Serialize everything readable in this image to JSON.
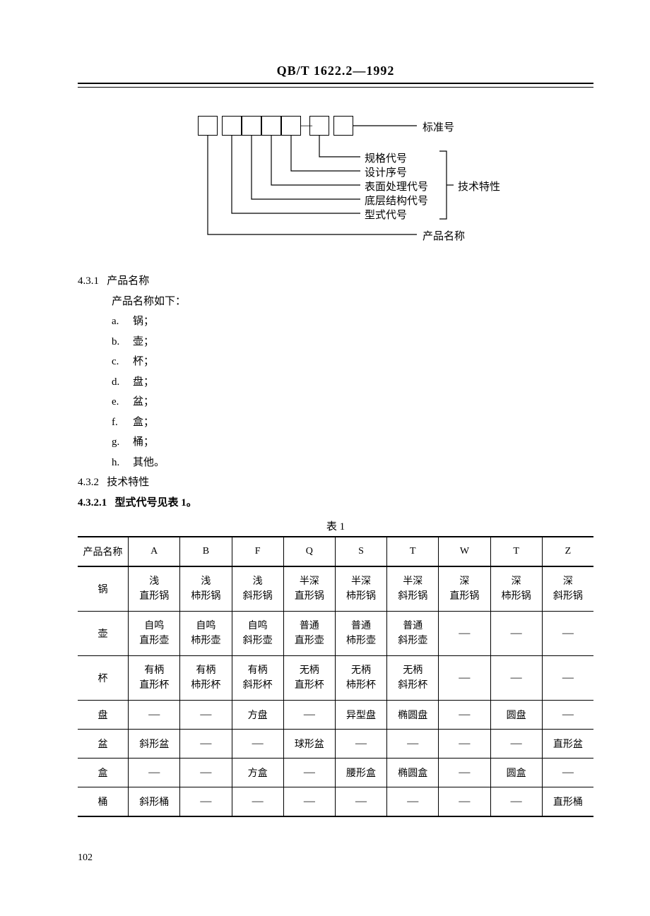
{
  "header": {
    "standard_code": "QB/T 1622.2—1992"
  },
  "diagram": {
    "labels": {
      "l1": "标准号",
      "l2": "规格代号",
      "l3": "设计序号",
      "l4": "表面处理代号",
      "l5": "底层结构代号",
      "l6": "型式代号",
      "l7": "产品名称",
      "group": "技术特性"
    }
  },
  "section_431": {
    "num": "4.3.1",
    "title": "产品名称",
    "intro": "产品名称如下：",
    "items": [
      {
        "letter": "a.",
        "text": "锅；"
      },
      {
        "letter": "b.",
        "text": "壶；"
      },
      {
        "letter": "c.",
        "text": "杯；"
      },
      {
        "letter": "d.",
        "text": "盘；"
      },
      {
        "letter": "e.",
        "text": "盆；"
      },
      {
        "letter": "f.",
        "text": "盒；"
      },
      {
        "letter": "g.",
        "text": "桶；"
      },
      {
        "letter": "h.",
        "text": "其他。"
      }
    ]
  },
  "section_432": {
    "num": "4.3.2",
    "title": "技术特性"
  },
  "section_4321": {
    "num": "4.3.2.1",
    "title": "型式代号见表 1。"
  },
  "table1": {
    "caption": "表 1",
    "columns": [
      "产品名称",
      "A",
      "B",
      "F",
      "Q",
      "S",
      "T",
      "W",
      "T",
      "Z"
    ],
    "rows": [
      {
        "name": "锅",
        "cells": [
          "浅\n直形锅",
          "浅\n柿形锅",
          "浅\n斜形锅",
          "半深\n直形锅",
          "半深\n柿形锅",
          "半深\n斜形锅",
          "深\n直形锅",
          "深\n柿形锅",
          "深\n斜形锅"
        ]
      },
      {
        "name": "壶",
        "cells": [
          "自鸣\n直形壶",
          "自鸣\n柿形壶",
          "自鸣\n斜形壶",
          "普通\n直形壶",
          "普通\n柿形壶",
          "普通\n斜形壶",
          "—",
          "—",
          "—"
        ]
      },
      {
        "name": "杯",
        "cells": [
          "有柄\n直形杯",
          "有柄\n柿形杯",
          "有柄\n斜形杯",
          "无柄\n直形杯",
          "无柄\n柿形杯",
          "无柄\n斜形杯",
          "—",
          "—",
          "—"
        ]
      },
      {
        "name": "盘",
        "cells": [
          "—",
          "—",
          "方盘",
          "—",
          "异型盘",
          "椭圆盘",
          "—",
          "圆盘",
          "—"
        ]
      },
      {
        "name": "盆",
        "cells": [
          "斜形盆",
          "—",
          "—",
          "球形盆",
          "—",
          "—",
          "—",
          "—",
          "直形盆"
        ]
      },
      {
        "name": "盒",
        "cells": [
          "—",
          "—",
          "方盒",
          "—",
          "腰形盒",
          "椭圆盒",
          "—",
          "圆盒",
          "—"
        ]
      },
      {
        "name": "桶",
        "cells": [
          "斜形桶",
          "—",
          "—",
          "—",
          "—",
          "—",
          "—",
          "—",
          "直形桶"
        ]
      }
    ]
  },
  "page_number": "102"
}
